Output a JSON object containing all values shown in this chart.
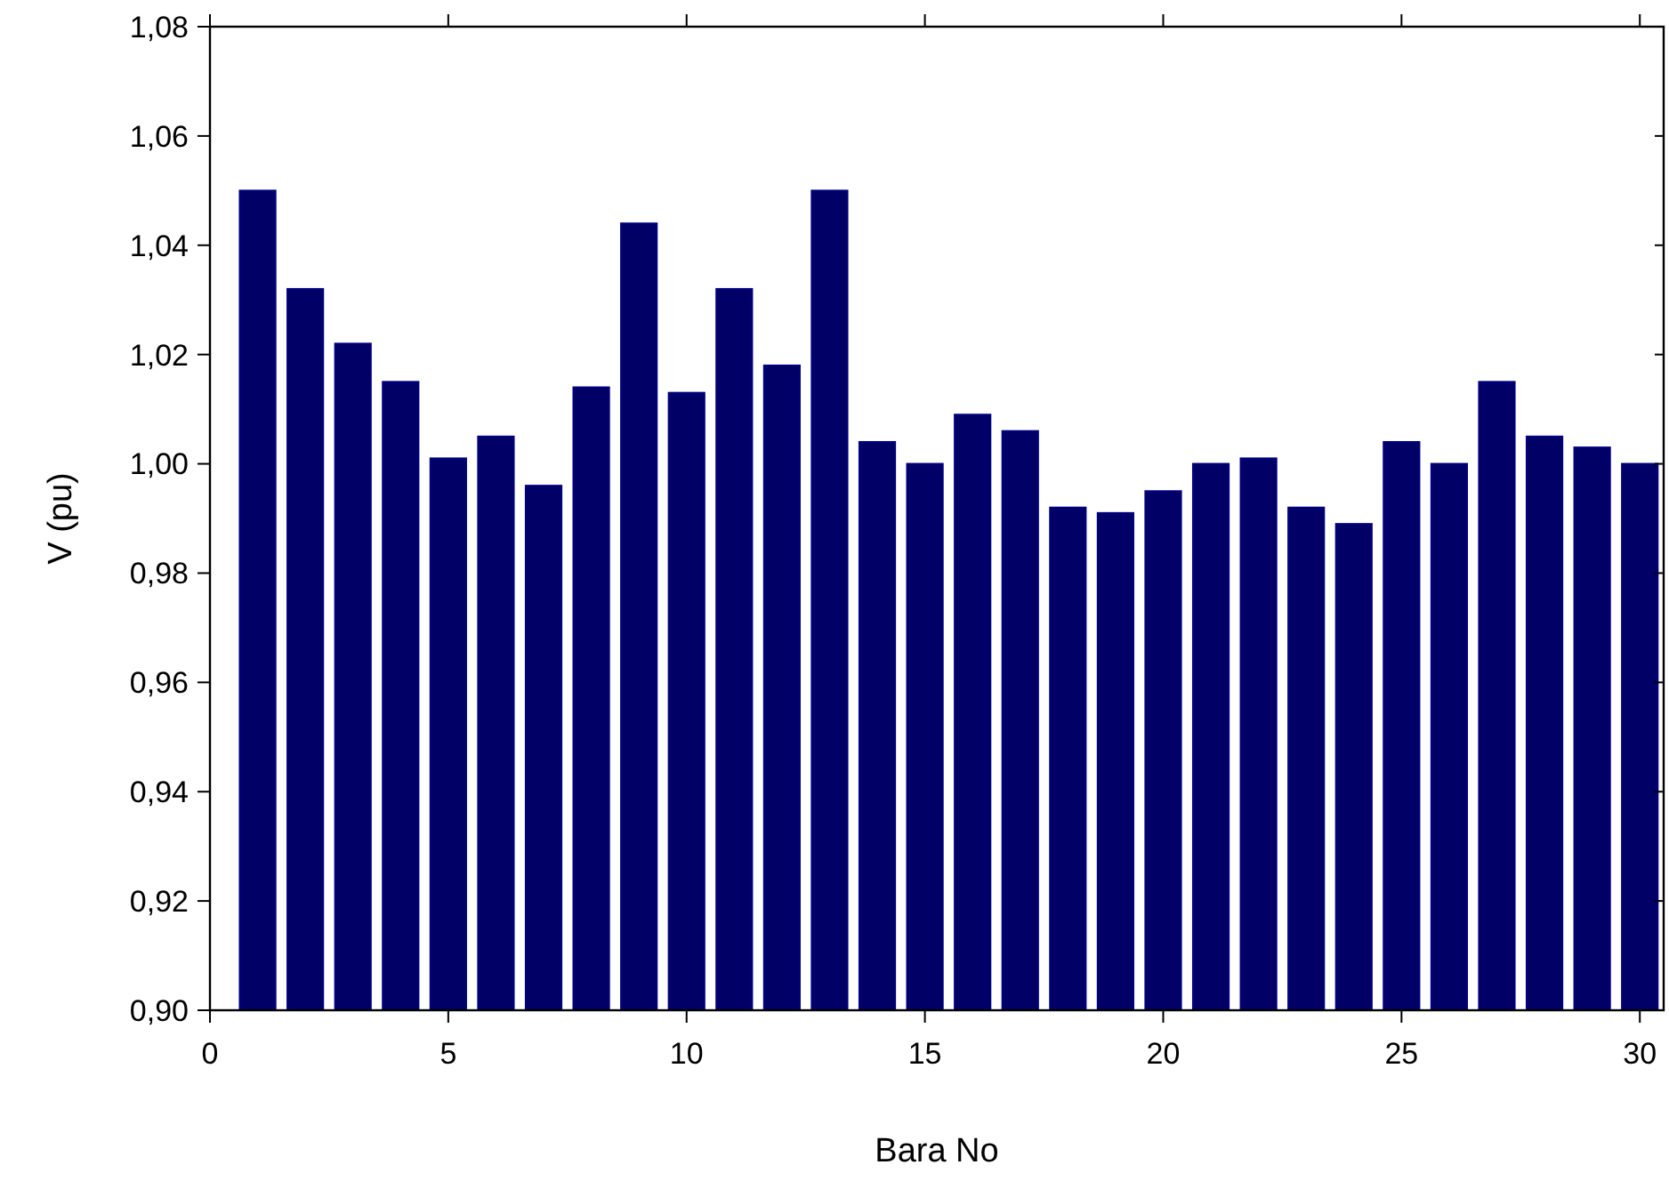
{
  "chart_data": {
    "type": "bar",
    "xlabel": "Bara No",
    "ylabel": "V (pu)",
    "color": "#000066",
    "x": [
      1,
      2,
      3,
      4,
      5,
      6,
      7,
      8,
      9,
      10,
      11,
      12,
      13,
      14,
      15,
      16,
      17,
      18,
      19,
      20,
      21,
      22,
      23,
      24,
      25,
      26,
      27,
      28,
      29,
      30
    ],
    "values": [
      1.05,
      1.032,
      1.022,
      1.015,
      1.001,
      1.005,
      0.996,
      1.014,
      1.044,
      1.013,
      1.032,
      1.018,
      1.05,
      1.004,
      1.0,
      1.009,
      1.006,
      0.992,
      0.991,
      0.995,
      1.0,
      1.001,
      0.992,
      0.989,
      1.004,
      1.0,
      1.015,
      1.005,
      1.003,
      1.0
    ],
    "xlim": [
      0,
      30.5
    ],
    "xticks": [
      0,
      5,
      10,
      15,
      20,
      25,
      30
    ],
    "ylim": [
      0.9,
      1.08
    ],
    "yticks": [
      {
        "value": 0.9,
        "label": "0,90"
      },
      {
        "value": 0.92,
        "label": "0,92"
      },
      {
        "value": 0.94,
        "label": "0,94"
      },
      {
        "value": 0.96,
        "label": "0,96"
      },
      {
        "value": 0.98,
        "label": "0,98"
      },
      {
        "value": 1.0,
        "label": "1,00"
      },
      {
        "value": 1.02,
        "label": "1,02"
      },
      {
        "value": 1.04,
        "label": "1,04"
      },
      {
        "value": 1.06,
        "label": "1,06"
      },
      {
        "value": 1.08,
        "label": "1,08"
      }
    ],
    "grid": false
  }
}
